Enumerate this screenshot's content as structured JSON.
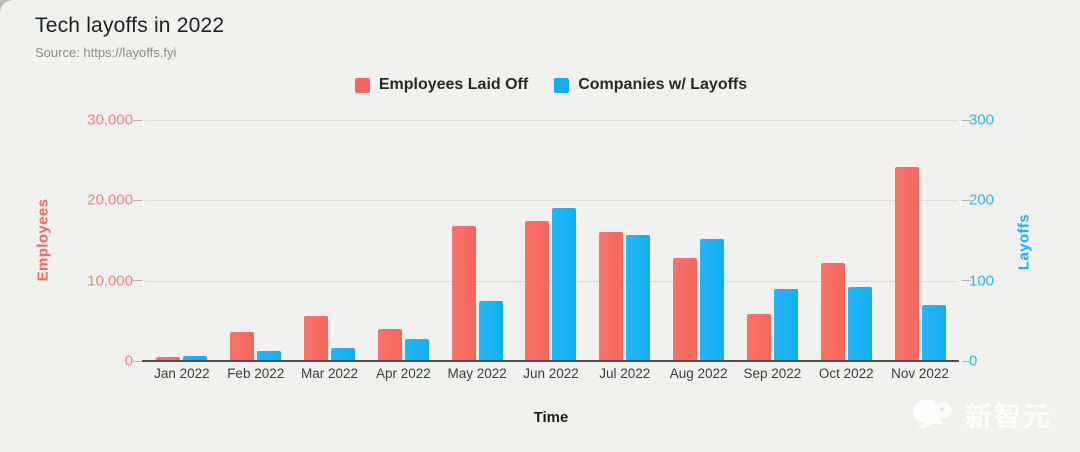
{
  "header": {
    "title": "Tech layoffs in 2022",
    "source": "Source: https://layoffs.fyi"
  },
  "legend": {
    "items": [
      {
        "label": "Employees Laid Off",
        "color": "#f7665c"
      },
      {
        "label": "Companies w/ Layoffs",
        "color": "#10aef2"
      }
    ]
  },
  "chart_data": {
    "type": "bar",
    "title": "Tech layoffs in 2022",
    "xlabel": "Time",
    "categories": [
      "Jan 2022",
      "Feb 2022",
      "Mar 2022",
      "Apr 2022",
      "May 2022",
      "Jun 2022",
      "Jul 2022",
      "Aug 2022",
      "Sep 2022",
      "Oct 2022",
      "Nov 2022"
    ],
    "series": [
      {
        "name": "Employees Laid Off",
        "axis": "left",
        "color": "#f7665c",
        "values": [
          500,
          3600,
          5600,
          4000,
          16800,
          17400,
          16100,
          12800,
          5800,
          12200,
          24200
        ]
      },
      {
        "name": "Companies w/ Layoffs",
        "axis": "right",
        "color": "#10aef2",
        "values": [
          6,
          12,
          16,
          28,
          75,
          190,
          157,
          152,
          90,
          92,
          70
        ]
      }
    ],
    "axes": {
      "left": {
        "label": "Employees",
        "lim": [
          0,
          30000
        ],
        "tick_color": "#f0867b",
        "title_color": "#f4685e",
        "ticks": [
          {
            "value": 0,
            "label": "0"
          },
          {
            "value": 10000,
            "label": "10,000"
          },
          {
            "value": 20000,
            "label": "20,000"
          },
          {
            "value": 30000,
            "label": "30,000"
          }
        ]
      },
      "right": {
        "label": "Layoffs",
        "lim": [
          0,
          300
        ],
        "tick_color": "#2fb7f3",
        "title_color": "#1cb1f2",
        "ticks": [
          {
            "value": 0,
            "label": "0"
          },
          {
            "value": 100,
            "label": "100"
          },
          {
            "value": 200,
            "label": "200"
          },
          {
            "value": 300,
            "label": "300"
          }
        ]
      }
    },
    "grid": true,
    "legend_position": "top"
  },
  "watermark": {
    "text": "新智元"
  }
}
